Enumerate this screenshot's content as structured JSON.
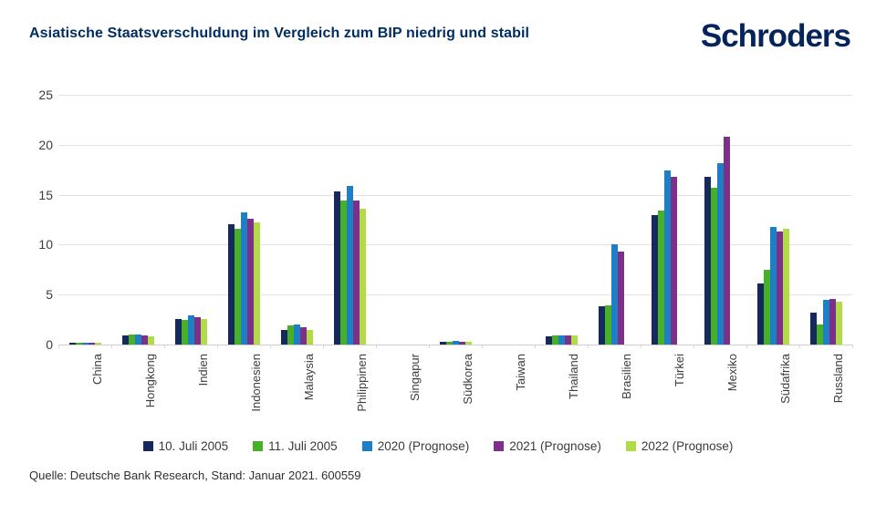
{
  "header": {
    "title": "Asiatische Staatsverschuldung im Vergleich zum BIP niedrig und stabil",
    "logo": "Schroders"
  },
  "chart_data": {
    "type": "bar",
    "title": "Asiatische Staatsverschuldung im Vergleich zum BIP niedrig und stabil",
    "categories": [
      "China",
      "Hongkong",
      "Indien",
      "Indonesien",
      "Malaysia",
      "Philippinen",
      "Singapur",
      "Südkorea",
      "Taiwan",
      "Thailand",
      "Brasilien",
      "Türkei",
      "Mexiko",
      "Südafrika",
      "Russland"
    ],
    "series": [
      {
        "name": "10. Juli 2005",
        "color": "#16295c",
        "values": [
          0.15,
          0.9,
          2.6,
          12.0,
          1.5,
          15.3,
          0,
          0.3,
          0,
          0.85,
          3.8,
          13.0,
          16.8,
          6.1,
          3.2
        ]
      },
      {
        "name": "11. Juli 2005",
        "color": "#45b028",
        "values": [
          0.15,
          1.0,
          2.5,
          11.6,
          1.9,
          14.4,
          0,
          0.3,
          0,
          0.9,
          3.9,
          13.4,
          15.7,
          7.5,
          2.0
        ]
      },
      {
        "name": "2020 (Prognose)",
        "color": "#1d7fc4",
        "values": [
          0.15,
          1.0,
          2.9,
          13.2,
          2.0,
          15.9,
          0,
          0.35,
          0,
          0.9,
          10.0,
          17.4,
          18.2,
          11.8,
          4.5
        ]
      },
      {
        "name": "2021 (Prognose)",
        "color": "#7d3088",
        "values": [
          0.15,
          0.9,
          2.7,
          12.6,
          1.7,
          14.4,
          0,
          0.3,
          0,
          0.9,
          9.3,
          16.8,
          20.8,
          11.3,
          4.6
        ]
      },
      {
        "name": "2022 (Prognose)",
        "color": "#b2db4a",
        "values": [
          0.15,
          0.85,
          2.6,
          12.2,
          1.5,
          13.6,
          0,
          0.3,
          0,
          0.9,
          0,
          0,
          0,
          11.6,
          4.3
        ]
      }
    ],
    "ylim": [
      0,
      25
    ],
    "yticks": [
      0,
      5,
      10,
      15,
      20,
      25
    ],
    "xlabel": "",
    "ylabel": "",
    "grid": true,
    "legend_position": "bottom"
  },
  "footer": {
    "source": "Quelle: Deutsche Bank Research, Stand: Januar 2021. 600559"
  },
  "colors": {
    "title": "#002d62",
    "logo": "#06245c",
    "gridline": "#e3e3e3",
    "axis_text": "#3d3d3d"
  }
}
